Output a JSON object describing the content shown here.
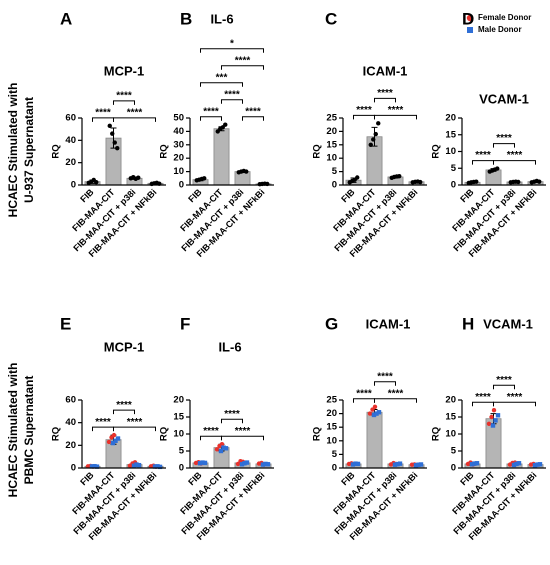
{
  "row_labels": [
    [
      "HCAEC Stimulated with",
      "U-937 Supernatant"
    ],
    [
      "HCAEC Stimulated with",
      "PBMC Supernatant"
    ]
  ],
  "legend": [
    {
      "name": "Female Donor",
      "color": "#e8322c",
      "marker": "circle"
    },
    {
      "name": "Male Donor",
      "color": "#2f6fd6",
      "marker": "square"
    }
  ],
  "chart_data": [
    {
      "type": "bar",
      "panel": "A",
      "title": "MCP-1",
      "ylabel": "RQ",
      "color": "#b5b5b5",
      "categories": [
        "FIB",
        "FIB-MAA-CIT",
        "FIB-MAA-CIT + p38i",
        "FIB-MAA-CIT + NFkBi"
      ],
      "values": [
        3,
        42,
        6,
        1.5
      ],
      "errors": [
        1.5,
        9,
        1,
        0.4
      ],
      "points": [
        [
          2,
          3,
          4.5,
          2.5
        ],
        [
          53,
          46,
          38,
          33
        ],
        [
          6,
          7,
          5.5,
          6.5
        ],
        [
          1,
          1.5,
          2,
          1.2
        ]
      ],
      "ylim": [
        0,
        60
      ],
      "yticks": [
        0,
        20,
        40,
        60
      ],
      "comparisons": [
        [
          {
            "pair": [
              0,
              1
            ],
            "label": "****"
          },
          {
            "pair": [
              1,
              3
            ],
            "label": "****"
          }
        ],
        [
          {
            "pair": [
              1,
              2
            ],
            "label": "****"
          }
        ]
      ]
    },
    {
      "type": "bar",
      "panel": "B",
      "title": "IL-6",
      "ylabel": "RQ",
      "color": "#b5b5b5",
      "categories": [
        "FIB",
        "FIB-MAA-CIT",
        "FIB-MAA-CIT + p38i",
        "FIB-MAA-CIT + NFkBi"
      ],
      "values": [
        4,
        42,
        10,
        0.8
      ],
      "errors": [
        0.8,
        1.5,
        0.5,
        0.2
      ],
      "points": [
        [
          3.5,
          4,
          4.5,
          5
        ],
        [
          40,
          42,
          43,
          45
        ],
        [
          9.5,
          10,
          10.5,
          10
        ],
        [
          0.6,
          0.8,
          1,
          0.8
        ]
      ],
      "ylim": [
        0,
        50
      ],
      "yticks": [
        0,
        10,
        20,
        30,
        40,
        50
      ],
      "comparisons": [
        [
          {
            "pair": [
              0,
              1
            ],
            "label": "****"
          },
          {
            "pair": [
              2,
              3
            ],
            "label": "****"
          }
        ],
        [
          {
            "pair": [
              1,
              2
            ],
            "label": "****"
          }
        ],
        [
          {
            "pair": [
              0,
              2
            ],
            "label": "***"
          }
        ],
        [
          {
            "pair": [
              1,
              3
            ],
            "label": "****"
          }
        ],
        [
          {
            "pair": [
              0,
              3
            ],
            "label": "*"
          }
        ]
      ]
    },
    {
      "type": "bar",
      "panel": "C",
      "title": "ICAM-1",
      "ylabel": "RQ",
      "color": "#b5b5b5",
      "categories": [
        "FIB",
        "FIB-MAA-CIT",
        "FIB-MAA-CIT + p38i",
        "FIB-MAA-CIT + NFkBi"
      ],
      "values": [
        1.8,
        18,
        3,
        1.2
      ],
      "errors": [
        0.8,
        3.5,
        0.4,
        0.2
      ],
      "points": [
        [
          1,
          1.5,
          2,
          2.8
        ],
        [
          15,
          17,
          19,
          23
        ],
        [
          2.7,
          3,
          3.2,
          3.3
        ],
        [
          1,
          1.2,
          1.3,
          1.1
        ]
      ],
      "ylim": [
        0,
        25
      ],
      "yticks": [
        0,
        5,
        10,
        15,
        20,
        25
      ],
      "comparisons": [
        [
          {
            "pair": [
              0,
              1
            ],
            "label": "****"
          },
          {
            "pair": [
              1,
              3
            ],
            "label": "****"
          }
        ],
        [
          {
            "pair": [
              1,
              2
            ],
            "label": "****"
          }
        ]
      ]
    },
    {
      "type": "bar",
      "panel": "D",
      "title": "VCAM-1",
      "ylabel": "RQ",
      "color": "#b5b5b5",
      "categories": [
        "FIB",
        "FIB-MAA-CIT",
        "FIB-MAA-CIT + p38i",
        "FIB-MAA-CIT + NFkBi"
      ],
      "values": [
        0.8,
        4.5,
        0.9,
        1
      ],
      "errors": [
        0.2,
        0.4,
        0.1,
        0.2
      ],
      "points": [
        [
          0.6,
          0.8,
          0.9,
          1
        ],
        [
          4,
          4.3,
          4.6,
          4.9
        ],
        [
          0.8,
          0.9,
          1,
          0.9
        ],
        [
          0.8,
          1,
          1.2,
          1
        ]
      ],
      "ylim": [
        0,
        20
      ],
      "yticks": [
        0,
        5,
        10,
        15,
        20
      ],
      "comparisons": [
        [
          {
            "pair": [
              0,
              1
            ],
            "label": "****"
          },
          {
            "pair": [
              1,
              3
            ],
            "label": "****"
          }
        ],
        [
          {
            "pair": [
              1,
              2
            ],
            "label": "****"
          }
        ]
      ]
    },
    {
      "type": "bar",
      "panel": "E",
      "title": "MCP-1",
      "ylabel": "RQ",
      "color": "#b5b5b5",
      "categories": [
        "FIB",
        "FIB-MAA-CIT",
        "FIB-MAA-CIT + p38i",
        "FIB-MAA-CIT + NFkBi"
      ],
      "values": [
        1.5,
        25,
        3,
        1.5
      ],
      "errors": [
        0.4,
        4,
        1.5,
        0.5
      ],
      "female_points": [
        [
          1.5,
          1.8,
          1.3
        ],
        [
          23,
          27,
          29
        ],
        [
          2,
          4,
          5
        ],
        [
          1.5,
          2,
          1.2
        ]
      ],
      "male_points": [
        [
          1.4,
          1.6,
          1.2
        ],
        [
          22,
          24,
          26
        ],
        [
          2,
          3,
          2.5
        ],
        [
          1.3,
          1.5,
          1
        ]
      ],
      "ylim": [
        0,
        60
      ],
      "yticks": [
        0,
        20,
        40,
        60
      ],
      "comparisons": [
        [
          {
            "pair": [
              0,
              1
            ],
            "label": "****"
          },
          {
            "pair": [
              1,
              3
            ],
            "label": "****"
          }
        ],
        [
          {
            "pair": [
              1,
              2
            ],
            "label": "****"
          }
        ]
      ]
    },
    {
      "type": "bar",
      "panel": "F",
      "title": "IL-6",
      "ylabel": "RQ",
      "color": "#b5b5b5",
      "categories": [
        "FIB",
        "FIB-MAA-CIT",
        "FIB-MAA-CIT + p38i",
        "FIB-MAA-CIT + NFkBi"
      ],
      "values": [
        1.5,
        6,
        1.5,
        1.2
      ],
      "errors": [
        0.3,
        1,
        0.5,
        0.3
      ],
      "female_points": [
        [
          1.5,
          1.7,
          1.3
        ],
        [
          5.5,
          6.5,
          7
        ],
        [
          1.2,
          2,
          1.8
        ],
        [
          1.3,
          1.5,
          1
        ]
      ],
      "male_points": [
        [
          1.4,
          1.6,
          1.5
        ],
        [
          5,
          6,
          5.8
        ],
        [
          1.1,
          1.4,
          1.6
        ],
        [
          1,
          1.2,
          1.1
        ]
      ],
      "ylim": [
        0,
        20
      ],
      "yticks": [
        0,
        5,
        10,
        15,
        20
      ],
      "comparisons": [
        [
          {
            "pair": [
              0,
              1
            ],
            "label": "****"
          },
          {
            "pair": [
              1,
              3
            ],
            "label": "****"
          }
        ],
        [
          {
            "pair": [
              1,
              2
            ],
            "label": "****"
          }
        ]
      ]
    },
    {
      "type": "bar",
      "panel": "G",
      "title": "ICAM-1",
      "ylabel": "RQ",
      "color": "#b5b5b5",
      "categories": [
        "FIB",
        "FIB-MAA-CIT",
        "FIB-MAA-CIT + p38i",
        "FIB-MAA-CIT + NFkBi"
      ],
      "values": [
        1.5,
        20.5,
        1.5,
        1.2
      ],
      "errors": [
        0.3,
        1,
        0.4,
        0.2
      ],
      "female_points": [
        [
          1.5,
          1.7,
          1.4
        ],
        [
          20,
          21.5,
          22.5
        ],
        [
          1.3,
          1.8,
          1.5
        ],
        [
          1.2,
          1.3,
          1.1
        ]
      ],
      "male_points": [
        [
          1.3,
          1.6,
          1.5
        ],
        [
          19.5,
          20,
          20.5
        ],
        [
          1.2,
          1.4,
          1.6
        ],
        [
          1,
          1.2,
          1.3
        ]
      ],
      "ylim": [
        0,
        25
      ],
      "yticks": [
        0,
        5,
        10,
        15,
        20,
        25
      ],
      "comparisons": [
        [
          {
            "pair": [
              0,
              1
            ],
            "label": "****"
          },
          {
            "pair": [
              1,
              3
            ],
            "label": "****"
          }
        ],
        [
          {
            "pair": [
              1,
              2
            ],
            "label": "****"
          }
        ]
      ]
    },
    {
      "type": "bar",
      "panel": "H",
      "title": "VCAM-1",
      "ylabel": "RQ",
      "color": "#b5b5b5",
      "categories": [
        "FIB",
        "FIB-MAA-CIT",
        "FIB-MAA-CIT + p38i",
        "FIB-MAA-CIT + NFkBi"
      ],
      "values": [
        1.2,
        14.5,
        1.2,
        1
      ],
      "errors": [
        0.4,
        1.5,
        0.4,
        0.2
      ],
      "female_points": [
        [
          1.2,
          1.6,
          1
        ],
        [
          13,
          15,
          17
        ],
        [
          1,
          1.5,
          1.6
        ],
        [
          1,
          1.2,
          0.9
        ]
      ],
      "male_points": [
        [
          1.1,
          1.3,
          1.4
        ],
        [
          12.5,
          14,
          15.5
        ],
        [
          0.9,
          1.2,
          1.4
        ],
        [
          0.8,
          1,
          1.1
        ]
      ],
      "ylim": [
        0,
        20
      ],
      "yticks": [
        0,
        5,
        10,
        15,
        20
      ],
      "comparisons": [
        [
          {
            "pair": [
              0,
              1
            ],
            "label": "****"
          },
          {
            "pair": [
              1,
              3
            ],
            "label": "****"
          }
        ],
        [
          {
            "pair": [
              1,
              2
            ],
            "label": "****"
          }
        ]
      ]
    }
  ]
}
